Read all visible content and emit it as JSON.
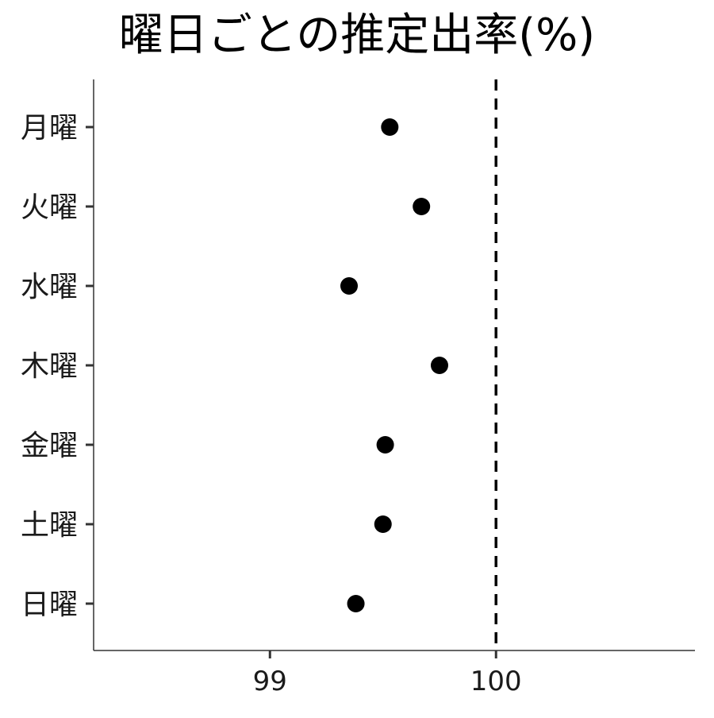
{
  "chart_data": {
    "type": "scatter",
    "title": "曜日ごとの推定出率(%)",
    "xlabel": "",
    "ylabel": "",
    "categories": [
      "月曜",
      "火曜",
      "水曜",
      "木曜",
      "金曜",
      "土曜",
      "日曜"
    ],
    "values": [
      99.53,
      99.67,
      99.35,
      99.75,
      99.51,
      99.5,
      99.38
    ],
    "xlim": [
      98.22,
      100.88
    ],
    "x_ticks": [
      99,
      100
    ],
    "x_tick_labels": [
      "99",
      "100"
    ],
    "reference_line": {
      "x": 100,
      "style": "dashed"
    },
    "grid": false,
    "colors": {
      "point": "#000000",
      "axis": "#333333",
      "reference_line": "#000000"
    }
  }
}
